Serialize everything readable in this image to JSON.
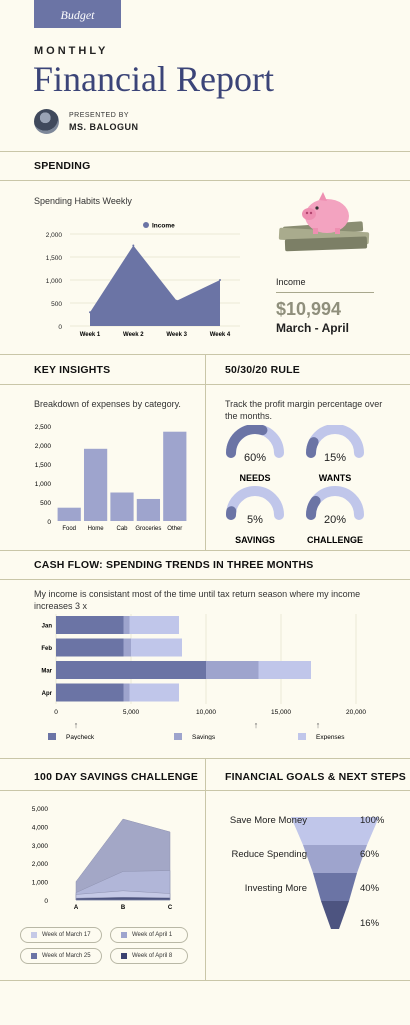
{
  "header": {
    "tag": "Budget",
    "overline": "MONTHLY",
    "title": "Financial Report",
    "presented_by": "PRESENTED BY",
    "presenter": "MS. BALOGUN"
  },
  "colors": {
    "background": "#fdfbf0",
    "primary": "#6b74a5",
    "mid": "#9ea4cd",
    "light": "#c0c6ea",
    "dark": "#4d5480",
    "rule": "#c9c6a8"
  },
  "spending": {
    "title": "SPENDING",
    "chart_label": "Spending Habits Weekly",
    "income_label": "Income",
    "income_value": "$10,994",
    "income_period": "March - April",
    "piggy": "piggy-bank-illustration"
  },
  "insights": {
    "title": "KEY INSIGHTS",
    "subtitle": "Breakdown of expenses by category."
  },
  "rule": {
    "title": "50/30/20 RULE",
    "subtitle": "Track the profit margin percentage over the months.",
    "gauges": [
      {
        "value": "60%",
        "label": "NEEDS",
        "fraction": 0.6
      },
      {
        "value": "15%",
        "label": "WANTS",
        "fraction": 0.15
      },
      {
        "value": "5%",
        "label": "SAVINGS",
        "fraction": 0.05
      },
      {
        "value": "20%",
        "label": "CHALLENGE",
        "fraction": 0.2
      }
    ]
  },
  "cashflow": {
    "title": "CASH FLOW: SPENDING TRENDS IN THREE MONTHS",
    "subtitle": "My income is consistant most of the time until tax return season where my income increases 3 x"
  },
  "savings": {
    "title": "100 DAY SAVINGS CHALLENGE"
  },
  "goals": {
    "title": "FINANCIAL GOALS & NEXT STEPS",
    "items": [
      {
        "label": "Save More Money",
        "pct": "100%"
      },
      {
        "label": "Reduce Spending",
        "pct": "60%"
      },
      {
        "label": "Investing More",
        "pct": "40%"
      },
      {
        "label": "",
        "pct": "16%"
      }
    ]
  },
  "chart_data": [
    {
      "id": "weekly",
      "type": "area",
      "categories": [
        "Week 1",
        "Week 2",
        "Week 3",
        "Week 4"
      ],
      "series": [
        {
          "name": "Income",
          "values": [
            300,
            1750,
            550,
            1000
          ]
        }
      ],
      "ylim": [
        0,
        2000
      ],
      "yticks": [
        "0",
        "500",
        "1,000",
        "1,500",
        "2,000"
      ],
      "legend": "top"
    },
    {
      "id": "category",
      "type": "bar",
      "categories": [
        "Food",
        "Home",
        "Cab",
        "Groceries",
        "Other"
      ],
      "values": [
        350,
        1900,
        750,
        580,
        2350
      ],
      "ylim": [
        0,
        2500
      ],
      "yticks": [
        "0",
        "500",
        "1,000",
        "1,500",
        "2,000",
        "2,500"
      ]
    },
    {
      "id": "cashflow",
      "type": "bar",
      "orientation": "horizontal",
      "stacked": true,
      "categories": [
        "Jan",
        "Feb",
        "Mar",
        "Apr"
      ],
      "series": [
        {
          "name": "Paycheck",
          "values": [
            4500,
            4500,
            10000,
            4500
          ]
        },
        {
          "name": "Savings",
          "values": [
            400,
            500,
            3500,
            400
          ]
        },
        {
          "name": "Expenses",
          "values": [
            3300,
            3400,
            3500,
            3300
          ]
        }
      ],
      "xlim": [
        0,
        20000
      ],
      "xticks": [
        "0",
        "5,000",
        "10,000",
        "15,000",
        "20,000"
      ],
      "legend": "bottom"
    },
    {
      "id": "challenge",
      "type": "area",
      "categories": [
        "A",
        "B",
        "C"
      ],
      "series": [
        {
          "name": "Week of March 17",
          "values": [
            300,
            500,
            350
          ]
        },
        {
          "name": "Week of April 1",
          "values": [
            400,
            1550,
            1600
          ]
        },
        {
          "name": "Week of March 25",
          "values": [
            1000,
            4400,
            3700
          ]
        },
        {
          "name": "Week of April 8",
          "values": [
            100,
            150,
            120
          ]
        }
      ],
      "ylim": [
        0,
        5000
      ],
      "yticks": [
        "0",
        "1,000",
        "2,000",
        "3,000",
        "4,000",
        "5,000"
      ],
      "legend": "bottom"
    }
  ]
}
